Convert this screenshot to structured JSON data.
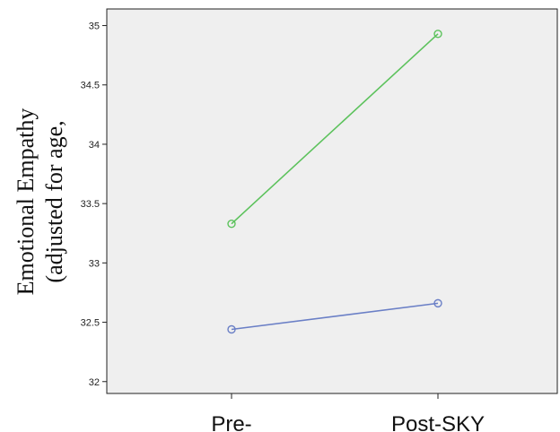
{
  "chart_data": {
    "type": "line",
    "categories": [
      "Pre-",
      "Post-SKY"
    ],
    "series": [
      {
        "values": [
          33.33,
          34.93
        ],
        "color": "#5cc25c"
      },
      {
        "values": [
          32.44,
          32.66
        ],
        "color": "#6a7fc6"
      }
    ],
    "ylabel_lines": [
      "Emotional Empathy",
      "(adjusted for age,"
    ],
    "yticks": [
      32,
      32.5,
      33,
      33.5,
      34,
      34.5,
      35
    ],
    "ytick_labels": [
      "32",
      "32.5",
      "33",
      "33.5",
      "34",
      "34.5",
      "35"
    ],
    "ylim": [
      31.9,
      35.14
    ],
    "grid": false,
    "plot_background": "#efefef"
  }
}
